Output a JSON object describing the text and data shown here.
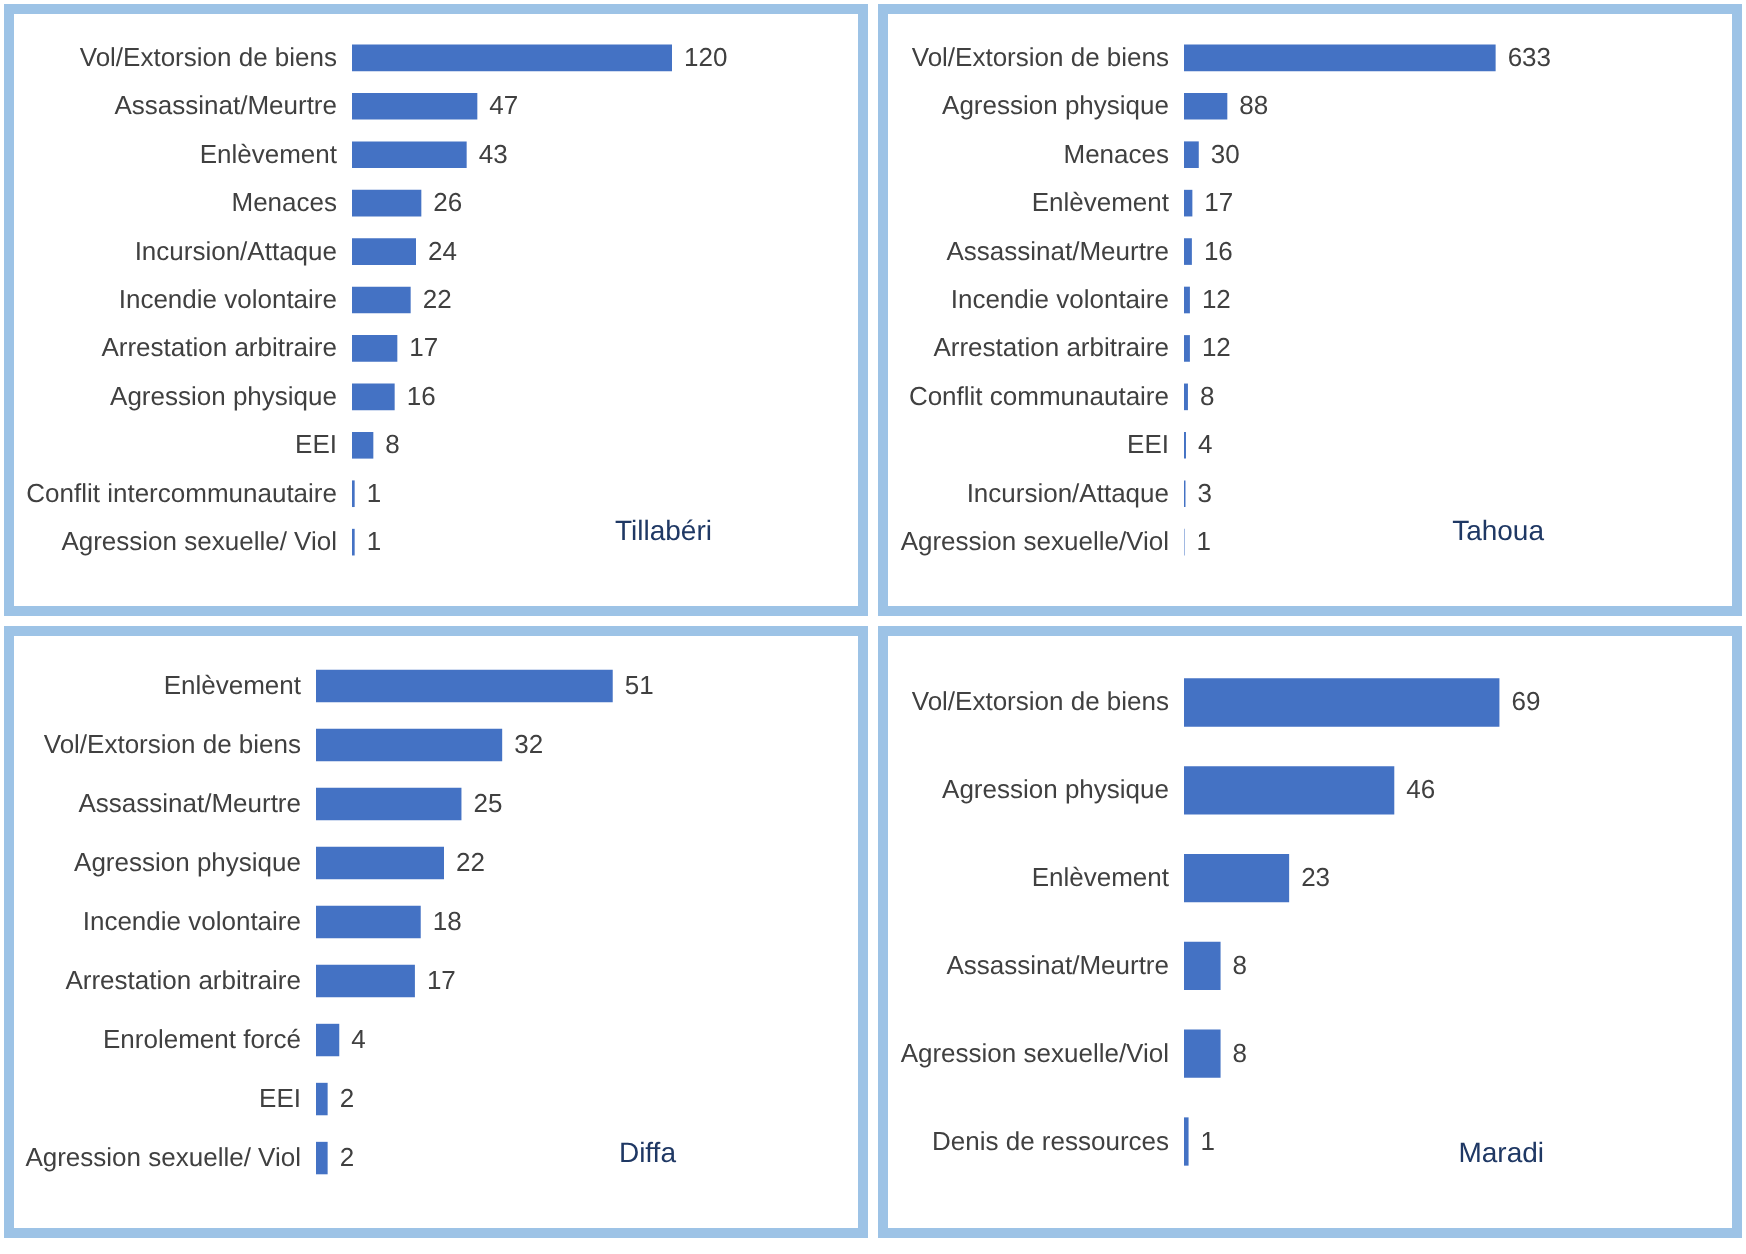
{
  "chart_data": [
    {
      "type": "bar",
      "orientation": "horizontal",
      "categories": [
        "Vol/Extorsion de biens",
        "Assassinat/Meurtre",
        "Enlèvement",
        "Menaces",
        "Incursion/Attaque",
        "Incendie volontaire",
        "Arrestation arbitraire",
        "Agression physique",
        "EEI",
        "Conflit intercommunautaire",
        "Agression sexuelle/ Viol"
      ],
      "values": [
        120,
        47,
        43,
        26,
        24,
        22,
        17,
        16,
        8,
        1,
        1
      ],
      "color": "#4472c4",
      "data_labels": true,
      "annotations": [
        "Tillabéri"
      ]
    },
    {
      "type": "bar",
      "orientation": "horizontal",
      "categories": [
        "Vol/Extorsion de biens",
        "Agression physique",
        "Menaces",
        "Enlèvement",
        "Assassinat/Meurtre",
        "Incendie volontaire",
        "Arrestation arbitraire",
        "Conflit communautaire",
        "EEI",
        "Incursion/Attaque",
        "Agression sexuelle/Viol"
      ],
      "values": [
        633,
        88,
        30,
        17,
        16,
        12,
        12,
        8,
        4,
        3,
        1
      ],
      "color": "#4472c4",
      "data_labels": true,
      "annotations": [
        "Tahoua"
      ]
    },
    {
      "type": "bar",
      "orientation": "horizontal",
      "categories": [
        "Enlèvement",
        "Vol/Extorsion de biens",
        "Assassinat/Meurtre",
        "Agression physique",
        "Incendie volontaire",
        "Arrestation arbitraire",
        "Enrolement forcé",
        "EEI",
        "Agression sexuelle/ Viol"
      ],
      "values": [
        51,
        32,
        25,
        22,
        18,
        17,
        4,
        2,
        2
      ],
      "color": "#4472c4",
      "data_labels": true,
      "annotations": [
        "Diffa"
      ]
    },
    {
      "type": "bar",
      "orientation": "horizontal",
      "categories": [
        "Vol/Extorsion de biens",
        "Agression physique",
        "Enlèvement",
        "Assassinat/Meurtre",
        "Agression sexuelle/Viol",
        "Denis de ressources"
      ],
      "values": [
        69,
        46,
        23,
        8,
        8,
        1
      ],
      "color": "#4472c4",
      "data_labels": true,
      "annotations": [
        "Maradi"
      ]
    }
  ]
}
